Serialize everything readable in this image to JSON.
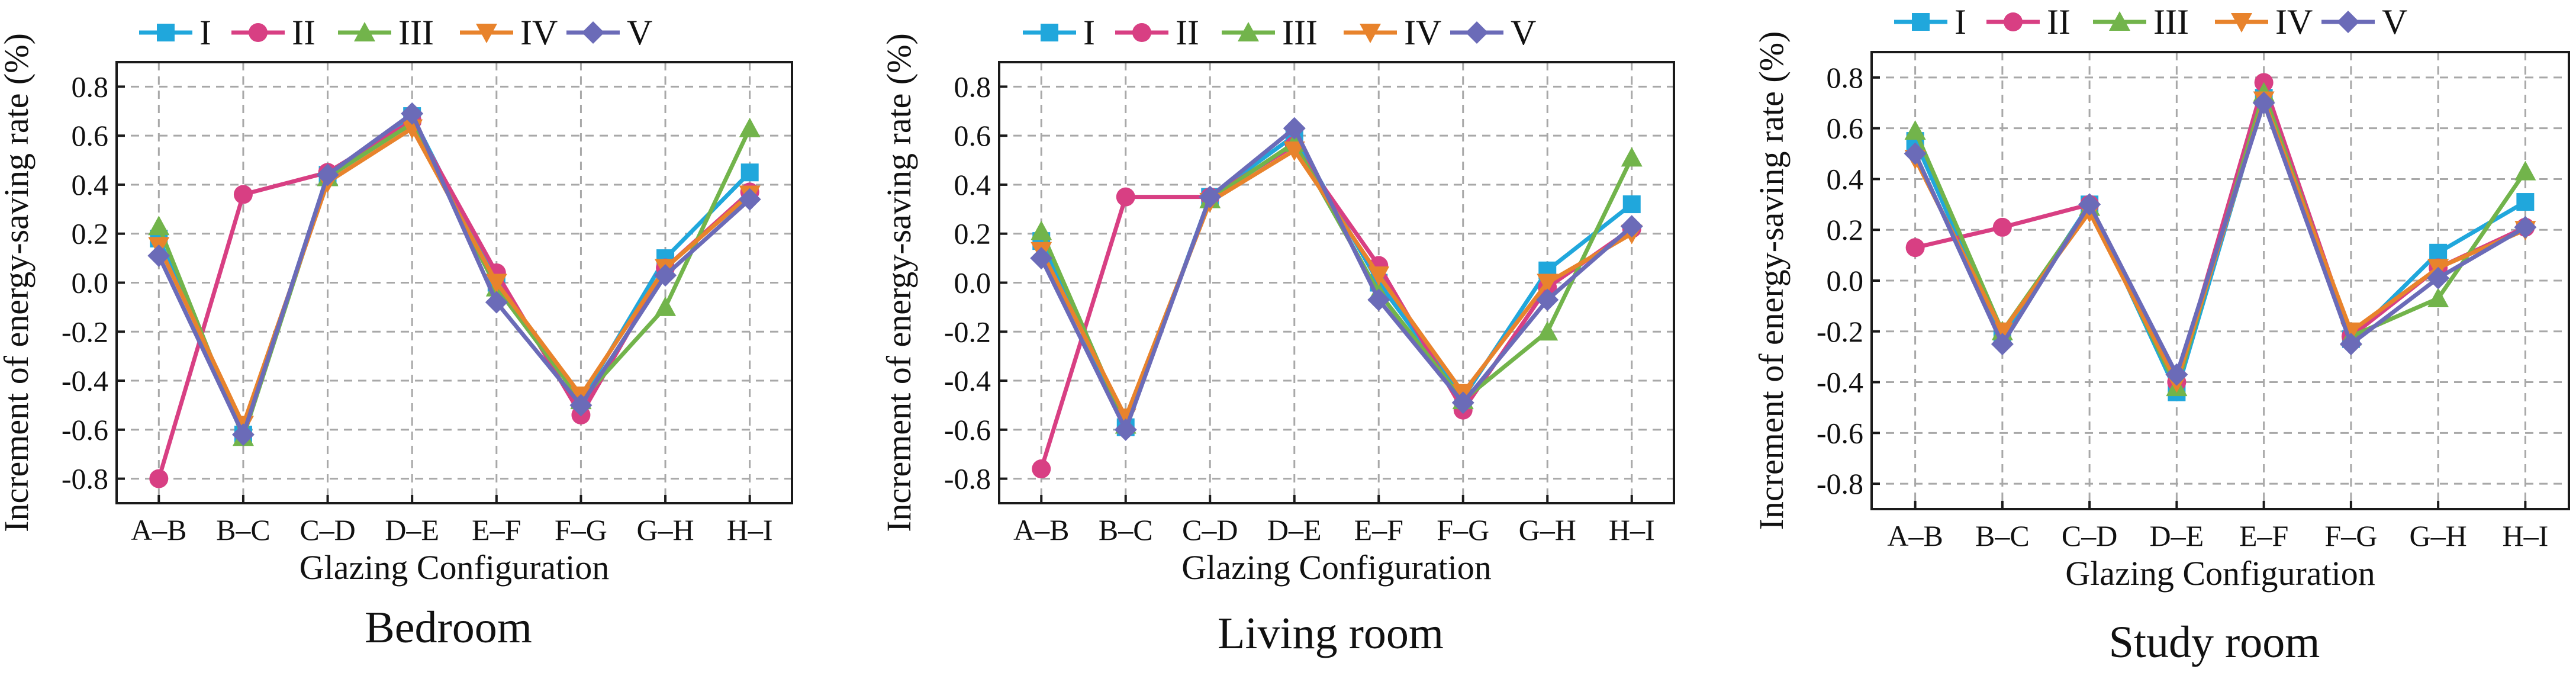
{
  "chart_data": [
    {
      "type": "line",
      "caption": "Bedroom",
      "xlabel": "Glazing Configuration",
      "ylabel": "Increment of energy-saving rate (%)",
      "categories": [
        "A–B",
        "B–C",
        "C–D",
        "D–E",
        "E–F",
        "F–G",
        "G–H",
        "H–I"
      ],
      "ylim": [
        -0.9,
        0.9
      ],
      "yticks": [
        "-0.8",
        "-0.6",
        "-0.4",
        "-0.2",
        "0.0",
        "0.2",
        "0.4",
        "0.6",
        "0.8"
      ],
      "grid": true,
      "legend": "top",
      "series": [
        {
          "name": "I",
          "values": [
            0.18,
            -0.62,
            0.44,
            0.68,
            0.0,
            -0.48,
            0.1,
            0.45
          ]
        },
        {
          "name": "II",
          "values": [
            -0.8,
            0.36,
            0.45,
            0.66,
            0.04,
            -0.54,
            0.06,
            0.37
          ]
        },
        {
          "name": "III",
          "values": [
            0.23,
            -0.63,
            0.43,
            0.65,
            -0.02,
            -0.48,
            -0.1,
            0.63
          ]
        },
        {
          "name": "IV",
          "values": [
            0.15,
            -0.58,
            0.41,
            0.63,
            0.0,
            -0.46,
            0.06,
            0.36
          ]
        },
        {
          "name": "V",
          "values": [
            0.11,
            -0.62,
            0.44,
            0.69,
            -0.08,
            -0.5,
            0.03,
            0.34
          ]
        }
      ]
    },
    {
      "type": "line",
      "caption": "Living room",
      "xlabel": "Glazing Configuration",
      "ylabel": "Increment of energy-saving rate (%)",
      "categories": [
        "A–B",
        "B–C",
        "C–D",
        "D–E",
        "E–F",
        "F–G",
        "G–H",
        "H–I"
      ],
      "ylim": [
        -0.9,
        0.9
      ],
      "yticks": [
        "-0.8",
        "-0.6",
        "-0.4",
        "-0.2",
        "0.0",
        "0.2",
        "0.4",
        "0.6",
        "0.8"
      ],
      "grid": true,
      "legend": "top",
      "series": [
        {
          "name": "I",
          "values": [
            0.17,
            -0.59,
            0.35,
            0.6,
            0.0,
            -0.47,
            0.05,
            0.32
          ]
        },
        {
          "name": "II",
          "values": [
            -0.76,
            0.35,
            0.35,
            0.56,
            0.07,
            -0.52,
            -0.02,
            0.22
          ]
        },
        {
          "name": "III",
          "values": [
            0.21,
            -0.58,
            0.34,
            0.57,
            -0.04,
            -0.48,
            -0.2,
            0.51
          ]
        },
        {
          "name": "IV",
          "values": [
            0.13,
            -0.55,
            0.33,
            0.54,
            0.03,
            -0.45,
            0.0,
            0.2
          ]
        },
        {
          "name": "V",
          "values": [
            0.1,
            -0.6,
            0.35,
            0.63,
            -0.07,
            -0.49,
            -0.07,
            0.23
          ]
        }
      ]
    },
    {
      "type": "line",
      "caption": "Study room",
      "xlabel": "Glazing Configuration",
      "ylabel": "Increment of energy-saving rate (%)",
      "categories": [
        "A–B",
        "B–C",
        "C–D",
        "D–E",
        "E–F",
        "F–G",
        "G–H",
        "H–I"
      ],
      "ylim": [
        -0.9,
        0.9
      ],
      "yticks": [
        "-0.8",
        "-0.6",
        "-0.4",
        "-0.2",
        "0.0",
        "0.2",
        "0.4",
        "0.6",
        "0.8"
      ],
      "grid": true,
      "legend": "top",
      "series": [
        {
          "name": "I",
          "values": [
            0.55,
            -0.22,
            0.3,
            -0.44,
            0.72,
            -0.23,
            0.11,
            0.31
          ]
        },
        {
          "name": "II",
          "values": [
            0.13,
            0.21,
            0.3,
            -0.4,
            0.78,
            -0.22,
            0.05,
            0.21
          ]
        },
        {
          "name": "III",
          "values": [
            0.59,
            -0.2,
            0.29,
            -0.42,
            0.74,
            -0.22,
            -0.07,
            0.43
          ]
        },
        {
          "name": "IV",
          "values": [
            0.48,
            -0.2,
            0.27,
            -0.4,
            0.71,
            -0.2,
            0.05,
            0.2
          ]
        },
        {
          "name": "V",
          "values": [
            0.5,
            -0.25,
            0.3,
            -0.37,
            0.7,
            -0.25,
            0.01,
            0.21
          ]
        }
      ]
    }
  ],
  "styles": {
    "series_colors": [
      "#20a7dc",
      "#d83f83",
      "#72b44b",
      "#e8832c",
      "#6b6bb8"
    ],
    "series_markers": [
      "square",
      "circle",
      "triangle-up",
      "triangle-down",
      "diamond"
    ],
    "grid_color": "#a8a8a8",
    "axis_color": "#1a1a1a"
  }
}
